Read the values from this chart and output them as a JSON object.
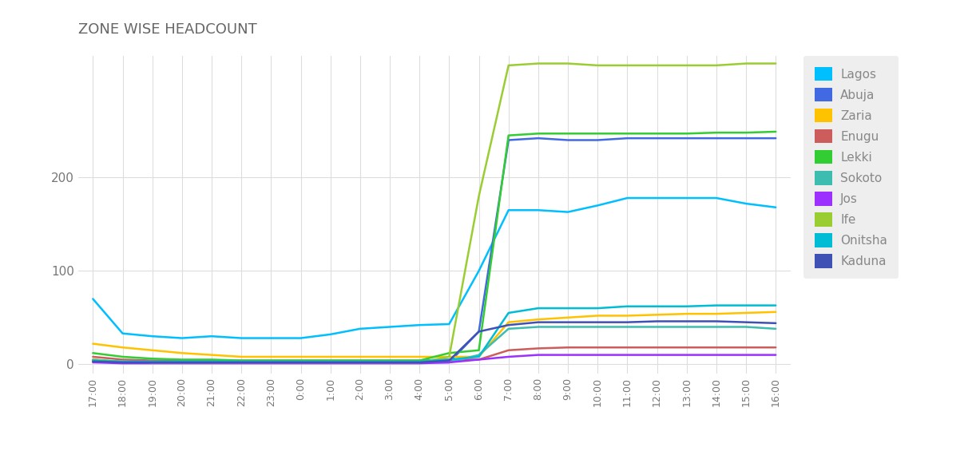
{
  "title": "ZONE WISE HEADCOUNT",
  "title_color": "#666666",
  "background_color": "#ffffff",
  "plot_bg_color": "#ffffff",
  "grid_color": "#dddddd",
  "x_ticks": [
    "17:00",
    "18:00",
    "19:00",
    "20:00",
    "21:00",
    "22:00",
    "23:00",
    "0:00",
    "1:00",
    "2:00",
    "3:00",
    "4:00",
    "5:00",
    "6:00",
    "7:00",
    "8:00",
    "9:00",
    "10:00",
    "11:00",
    "12:00",
    "13:00",
    "14:00",
    "15:00",
    "16:00"
  ],
  "y_ticks": [
    0,
    100,
    200
  ],
  "ylim_min": -10,
  "ylim_max": 330,
  "series": [
    {
      "name": "Lagos",
      "color": "#00bfff",
      "data": [
        70,
        33,
        30,
        28,
        30,
        28,
        28,
        28,
        32,
        38,
        40,
        42,
        43,
        100,
        165,
        165,
        163,
        170,
        178,
        178,
        178,
        178,
        172,
        168
      ]
    },
    {
      "name": "Abuja",
      "color": "#4169e1",
      "data": [
        5,
        2,
        2,
        2,
        2,
        2,
        2,
        2,
        2,
        2,
        2,
        2,
        2,
        35,
        240,
        242,
        240,
        240,
        242,
        242,
        242,
        242,
        242,
        242
      ]
    },
    {
      "name": "Zaria",
      "color": "#ffc200",
      "data": [
        22,
        18,
        15,
        12,
        10,
        8,
        8,
        8,
        8,
        8,
        8,
        8,
        8,
        8,
        45,
        48,
        50,
        52,
        52,
        53,
        54,
        54,
        55,
        56
      ]
    },
    {
      "name": "Enugu",
      "color": "#cd5c5c",
      "data": [
        8,
        5,
        4,
        4,
        4,
        4,
        4,
        4,
        4,
        4,
        4,
        4,
        5,
        5,
        15,
        17,
        18,
        18,
        18,
        18,
        18,
        18,
        18,
        18
      ]
    },
    {
      "name": "Lekki",
      "color": "#32cd32",
      "data": [
        12,
        8,
        6,
        5,
        5,
        4,
        4,
        4,
        4,
        4,
        4,
        4,
        12,
        15,
        245,
        247,
        247,
        247,
        247,
        247,
        247,
        248,
        248,
        249
      ]
    },
    {
      "name": "Sokoto",
      "color": "#3dbdb0",
      "data": [
        3,
        2,
        2,
        2,
        2,
        2,
        2,
        2,
        2,
        2,
        2,
        2,
        2,
        10,
        38,
        40,
        40,
        40,
        40,
        40,
        40,
        40,
        40,
        38
      ]
    },
    {
      "name": "Jos",
      "color": "#9b30ff",
      "data": [
        2,
        1,
        1,
        1,
        1,
        1,
        1,
        1,
        1,
        1,
        1,
        1,
        2,
        5,
        8,
        10,
        10,
        10,
        10,
        10,
        10,
        10,
        10,
        10
      ]
    },
    {
      "name": "Ife",
      "color": "#9acd32",
      "data": [
        5,
        3,
        2,
        2,
        2,
        2,
        2,
        2,
        2,
        2,
        2,
        2,
        8,
        180,
        320,
        322,
        322,
        320,
        320,
        320,
        320,
        320,
        322,
        322
      ]
    },
    {
      "name": "Onitsha",
      "color": "#00bcd4",
      "data": [
        4,
        3,
        3,
        3,
        3,
        3,
        3,
        3,
        3,
        3,
        3,
        3,
        5,
        8,
        55,
        60,
        60,
        60,
        62,
        62,
        62,
        63,
        63,
        63
      ]
    },
    {
      "name": "Kaduna",
      "color": "#3f51b5",
      "data": [
        3,
        2,
        2,
        2,
        2,
        2,
        2,
        2,
        2,
        2,
        2,
        2,
        4,
        35,
        42,
        45,
        45,
        45,
        45,
        46,
        46,
        46,
        45,
        44
      ]
    }
  ]
}
